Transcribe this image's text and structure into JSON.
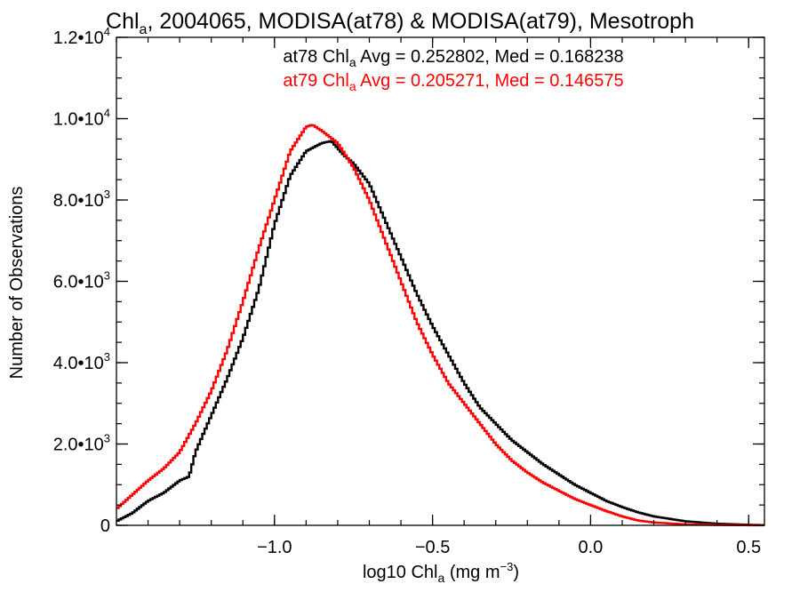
{
  "chart_data": {
    "type": "line",
    "step": true,
    "title_main": "Chl",
    "title_sub": "a",
    "title_rest": ", 2004065, MODISA(at78) & MODISA(at79), Mesotroph",
    "xlabel_main": "log10 Chl",
    "xlabel_sub": "a",
    "xlabel_unit": " (mg m",
    "xlabel_sup": "−3",
    "xlabel_close": ")",
    "ylabel": "Number of Observations",
    "xlim": [
      -1.5,
      0.55
    ],
    "ylim": [
      0,
      12000
    ],
    "x_ticks": [
      {
        "value": -1.0,
        "label": "−1.0"
      },
      {
        "value": -0.5,
        "label": "−0.5"
      },
      {
        "value": 0.0,
        "label": "0.0"
      },
      {
        "value": 0.5,
        "label": "0.5"
      }
    ],
    "y_ticks": [
      {
        "value": 0,
        "mant": "0",
        "exp": ""
      },
      {
        "value": 2000,
        "mant": "2.0•10",
        "exp": "3"
      },
      {
        "value": 4000,
        "mant": "4.0•10",
        "exp": "3"
      },
      {
        "value": 6000,
        "mant": "6.0•10",
        "exp": "3"
      },
      {
        "value": 8000,
        "mant": "8.0•10",
        "exp": "3"
      },
      {
        "value": 10000,
        "mant": "1.0•10",
        "exp": "4"
      },
      {
        "value": 12000,
        "mant": "1.2•10",
        "exp": "4"
      }
    ],
    "x_minor_step": 0.1,
    "y_minor_step": 500,
    "annotations": [
      {
        "pre": "at78 Chl",
        "sub": "a",
        "post": " Avg = 0.252802, Med = 0.168238",
        "color": "#000000"
      },
      {
        "pre": "at79 Chl",
        "sub": "a",
        "post": " Avg = 0.205271, Med = 0.146575",
        "color": "#ff0000"
      }
    ],
    "series": [
      {
        "color": "#000000",
        "x": [
          -1.5,
          -1.45,
          -1.4,
          -1.35,
          -1.3,
          -1.27,
          -1.25,
          -1.2,
          -1.15,
          -1.1,
          -1.05,
          -1.0,
          -0.95,
          -0.9,
          -0.85,
          -0.82,
          -0.78,
          -0.75,
          -0.7,
          -0.65,
          -0.6,
          -0.55,
          -0.5,
          -0.45,
          -0.4,
          -0.35,
          -0.3,
          -0.25,
          -0.2,
          -0.15,
          -0.1,
          -0.05,
          0.0,
          0.05,
          0.1,
          0.15,
          0.2,
          0.3,
          0.4,
          0.5,
          0.55
        ],
        "y": [
          100,
          300,
          600,
          800,
          1100,
          1200,
          1800,
          2700,
          3600,
          4600,
          5800,
          7400,
          8600,
          9200,
          9400,
          9450,
          9100,
          8900,
          8400,
          7500,
          6600,
          5700,
          4900,
          4200,
          3500,
          2900,
          2500,
          2100,
          1800,
          1500,
          1250,
          1000,
          800,
          600,
          450,
          320,
          220,
          100,
          40,
          15,
          5
        ]
      },
      {
        "color": "#ff0000",
        "x": [
          -1.5,
          -1.45,
          -1.4,
          -1.35,
          -1.3,
          -1.25,
          -1.2,
          -1.15,
          -1.1,
          -1.05,
          -1.0,
          -0.95,
          -0.9,
          -0.88,
          -0.85,
          -0.8,
          -0.75,
          -0.7,
          -0.65,
          -0.6,
          -0.55,
          -0.5,
          -0.45,
          -0.4,
          -0.35,
          -0.3,
          -0.25,
          -0.2,
          -0.15,
          -0.1,
          -0.05,
          0.0,
          0.05,
          0.1,
          0.15,
          0.2,
          0.3,
          0.4,
          0.5,
          0.55
        ],
        "y": [
          400,
          750,
          1100,
          1400,
          1800,
          2500,
          3300,
          4300,
          5500,
          6800,
          8000,
          9200,
          9800,
          9850,
          9700,
          9400,
          8800,
          8000,
          7000,
          6000,
          5000,
          4200,
          3500,
          3000,
          2500,
          2000,
          1600,
          1300,
          1050,
          850,
          650,
          500,
          350,
          220,
          120,
          70,
          25,
          10,
          3,
          2
        ]
      }
    ]
  }
}
